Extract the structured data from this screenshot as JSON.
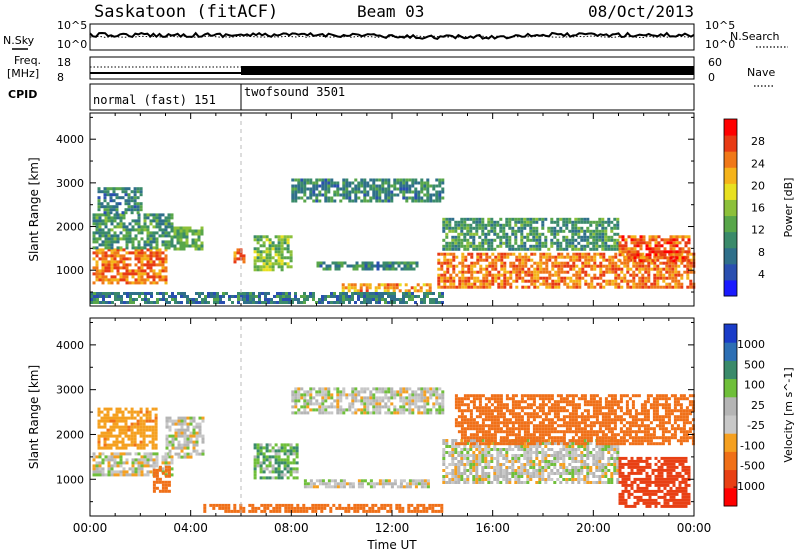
{
  "header": {
    "station": "Saskatoon (fitACF)",
    "beam": "Beam 03",
    "date": "08/Oct/2013"
  },
  "top_panels": {
    "nsky_label": "N.Sky",
    "nsearch_label": "N.Search",
    "freq_label_1": "Freq.",
    "freq_label_2": "[MHz]",
    "nave_label": "Nave",
    "cpid_label": "CPID",
    "noise_ticks": [
      "10^5",
      "10^0"
    ],
    "freq_ticks": [
      "18",
      "8"
    ],
    "nave_ticks": [
      "60",
      "0"
    ],
    "modes": [
      {
        "name": "normal (fast) 151",
        "start_hour": 0,
        "end_hour": 6
      },
      {
        "name": "twofsound 3501",
        "start_hour": 6,
        "end_hour": 24
      }
    ]
  },
  "colors": {
    "power_scale": [
      "#1a1aff",
      "#2a4fb0",
      "#2f6f8a",
      "#3a8a6a",
      "#58a64a",
      "#8cc03a",
      "#e8e020",
      "#f5b31a",
      "#f07818",
      "#e83a14",
      "#ff0000"
    ],
    "velocity_scale": [
      "#1a3cc8",
      "#2d6fb4",
      "#3a8a6a",
      "#6fbf3a",
      "#b5b5b5",
      "#c8c8c8",
      "#f5a020",
      "#f07018",
      "#e84014",
      "#ff0000"
    ]
  },
  "chart_data": [
    {
      "type": "heatmap",
      "name": "power-panel",
      "ylabel": "Slant Range [km]",
      "xlabel": "",
      "xlim": [
        0,
        24
      ],
      "ylim": [
        180,
        4600
      ],
      "x_tick_labels": [
        "00:00",
        "04:00",
        "08:00",
        "12:00",
        "16:00",
        "20:00",
        "00:00"
      ],
      "y_tick_labels": [
        "1000",
        "2000",
        "3000",
        "4000"
      ],
      "colorbar_label": "Power [dB]",
      "colorbar_ticks": [
        "28",
        "24",
        "20",
        "16",
        "12",
        "8",
        "4"
      ],
      "colorbar_range": [
        0,
        30
      ],
      "regions": [
        {
          "t0": 0.1,
          "t1": 3.0,
          "r0": 700,
          "r1": 1500,
          "level": 24
        },
        {
          "t0": 0.1,
          "t1": 3.2,
          "r0": 1500,
          "r1": 2300,
          "level": 10
        },
        {
          "t0": 0.3,
          "t1": 2.0,
          "r0": 2300,
          "r1": 2900,
          "level": 8
        },
        {
          "t0": 3.2,
          "t1": 4.4,
          "r0": 1500,
          "r1": 2000,
          "level": 12
        },
        {
          "t0": 5.7,
          "t1": 6.1,
          "r0": 1200,
          "r1": 1500,
          "level": 24
        },
        {
          "t0": 6.5,
          "t1": 8.0,
          "r0": 1000,
          "r1": 1800,
          "level": 14
        },
        {
          "t0": 8.0,
          "t1": 14.0,
          "r0": 2600,
          "r1": 3100,
          "level": 8
        },
        {
          "t0": 9.0,
          "t1": 13.0,
          "r0": 1000,
          "r1": 1200,
          "level": 8
        },
        {
          "t0": 10.0,
          "t1": 13.5,
          "r0": 500,
          "r1": 700,
          "level": 22
        },
        {
          "t0": 13.8,
          "t1": 24.0,
          "r0": 600,
          "r1": 1400,
          "level": 24
        },
        {
          "t0": 14.0,
          "t1": 21.0,
          "r0": 1500,
          "r1": 2200,
          "level": 10
        },
        {
          "t0": 21.0,
          "t1": 23.8,
          "r0": 1200,
          "r1": 1800,
          "level": 26
        },
        {
          "t0": 0.0,
          "t1": 14.0,
          "r0": 250,
          "r1": 500,
          "level": 7
        }
      ]
    },
    {
      "type": "heatmap",
      "name": "velocity-panel",
      "ylabel": "Slant Range [km]",
      "xlabel": "Time UT",
      "xlim": [
        0,
        24
      ],
      "ylim": [
        180,
        4600
      ],
      "x_tick_labels": [
        "00:00",
        "04:00",
        "08:00",
        "12:00",
        "16:00",
        "20:00",
        "00:00"
      ],
      "y_tick_labels": [
        "1000",
        "2000",
        "3000",
        "4000"
      ],
      "colorbar_label": "Velocity [m s^-1]",
      "colorbar_ticks": [
        "1000",
        "500",
        "100",
        "25",
        "-25",
        "-100",
        "-500",
        "-1000"
      ],
      "colorbar_range": [
        -1200,
        1200
      ],
      "regions": [
        {
          "t0": 0.1,
          "t1": 3.2,
          "r0": 1100,
          "r1": 1600,
          "velocity": 0
        },
        {
          "t0": 0.3,
          "t1": 2.6,
          "r0": 1700,
          "r1": 2600,
          "velocity": -150
        },
        {
          "t0": 2.5,
          "t1": 3.2,
          "r0": 700,
          "r1": 1300,
          "velocity": -400
        },
        {
          "t0": 3.0,
          "t1": 4.5,
          "r0": 1500,
          "r1": 2400,
          "velocity": 0
        },
        {
          "t0": 6.5,
          "t1": 8.2,
          "r0": 1000,
          "r1": 1800,
          "velocity": 80
        },
        {
          "t0": 8.0,
          "t1": 14.0,
          "r0": 2500,
          "r1": 3050,
          "velocity": 0
        },
        {
          "t0": 8.5,
          "t1": 13.5,
          "r0": 800,
          "r1": 1000,
          "velocity": 0
        },
        {
          "t0": 14.0,
          "t1": 21.0,
          "r0": 900,
          "r1": 1900,
          "velocity": 0
        },
        {
          "t0": 14.5,
          "t1": 24.0,
          "r0": 1800,
          "r1": 2900,
          "velocity": -400
        },
        {
          "t0": 21.0,
          "t1": 23.8,
          "r0": 400,
          "r1": 1500,
          "velocity": -700
        },
        {
          "t0": 4.5,
          "t1": 14.0,
          "r0": 250,
          "r1": 450,
          "velocity": -300
        }
      ]
    }
  ]
}
